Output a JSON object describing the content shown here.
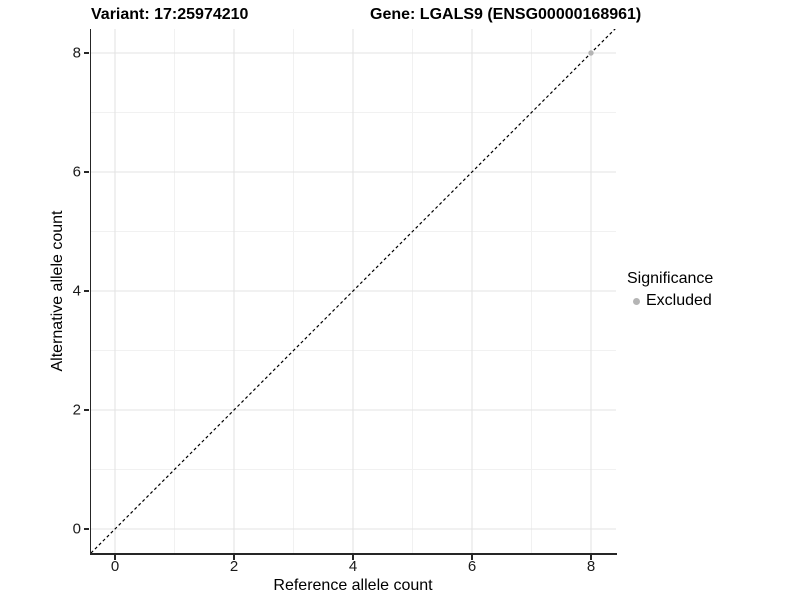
{
  "figure": {
    "title_left": "Variant: 17:25974210",
    "title_right": "Gene: LGALS9 (ENSG00000168961)"
  },
  "chart_data": {
    "type": "scatter",
    "title": "Variant: 17:25974210  |  Gene: LGALS9 (ENSG00000168961)",
    "xlabel": "Reference allele count",
    "ylabel": "Alternative allele count",
    "xlim": [
      -0.4,
      8.42
    ],
    "ylim": [
      -0.4,
      8.42
    ],
    "x_ticks": [
      0,
      2,
      4,
      6,
      8
    ],
    "y_ticks": [
      0,
      2,
      4,
      6,
      8
    ],
    "x_minor_ticks": [
      1,
      3,
      5,
      7
    ],
    "y_minor_ticks": [
      1,
      3,
      5,
      7
    ],
    "grid": "major+minor on white background",
    "series": [
      {
        "name": "Excluded",
        "marker": "circle",
        "color": "#b5b5b5",
        "points": [
          {
            "x": 8,
            "y": 8
          }
        ]
      }
    ],
    "reference_line": {
      "type": "identity y=x",
      "style": "dashed",
      "color": "#000000"
    },
    "legend": {
      "title": "Significance",
      "position": "right",
      "entries": [
        {
          "label": "Excluded",
          "color": "#b5b5b5",
          "marker": "circle"
        }
      ]
    },
    "colors": {
      "grid_major": "#e3e3e3",
      "grid_minor": "#f1f1f1",
      "axis": "#262626",
      "point": "#b5b5b5",
      "text": "#000000"
    }
  }
}
